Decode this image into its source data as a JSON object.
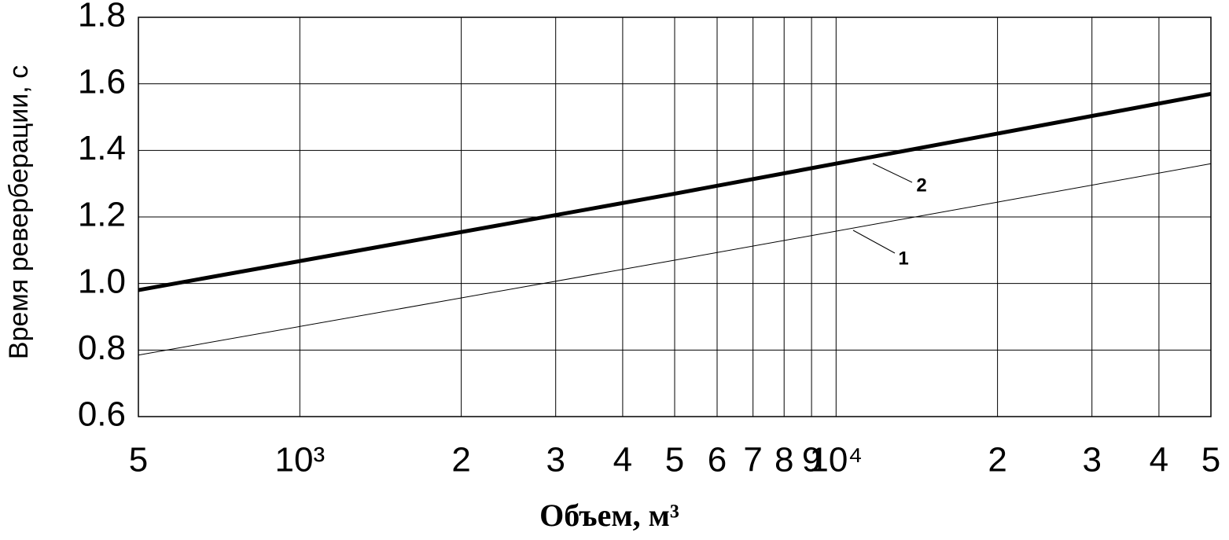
{
  "chart_data": {
    "type": "line",
    "x_label": "Объем, м³",
    "y_label": "Время  реверберации,  с",
    "x": [
      500,
      5000,
      50000
    ],
    "series": [
      {
        "name": "1",
        "color": "#000000",
        "width": 1,
        "values": [
          0.785,
          1.07,
          1.36
        ]
      },
      {
        "name": "2",
        "color": "#000000",
        "width": 5,
        "values": [
          0.98,
          1.27,
          1.57
        ]
      }
    ],
    "x_log": true,
    "xlim": [
      500,
      50000
    ],
    "xticks": [
      {
        "value": 500,
        "label": "5"
      },
      {
        "value": 1000,
        "label": "10³"
      },
      {
        "value": 2000,
        "label": "2"
      },
      {
        "value": 3000,
        "label": "3"
      },
      {
        "value": 4000,
        "label": "4"
      },
      {
        "value": 5000,
        "label": "5"
      },
      {
        "value": 6000,
        "label": "6"
      },
      {
        "value": 7000,
        "label": "7"
      },
      {
        "value": 8000,
        "label": "8"
      },
      {
        "value": 9000,
        "label": "9"
      },
      {
        "value": 10000,
        "label": "10⁴"
      },
      {
        "value": 20000,
        "label": "2"
      },
      {
        "value": 30000,
        "label": "3"
      },
      {
        "value": 40000,
        "label": "4"
      },
      {
        "value": 50000,
        "label": "5"
      }
    ],
    "ylim": [
      0.6,
      1.8
    ],
    "yticks": [
      0.6,
      0.8,
      {
        "value": 1,
        "label": "1.0"
      },
      1.2,
      1.4,
      1.6,
      1.8
    ],
    "grid": true
  }
}
